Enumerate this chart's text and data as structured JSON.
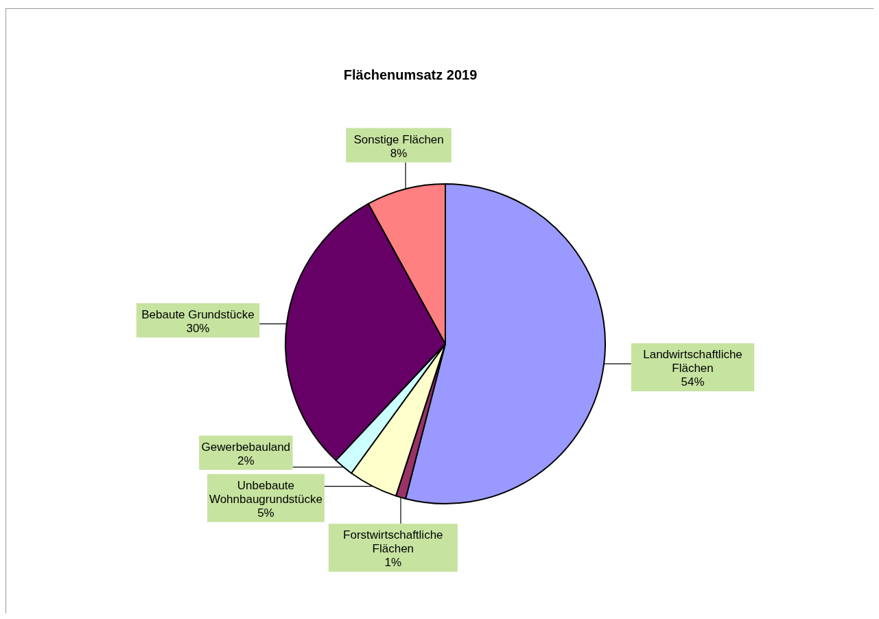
{
  "chart_data": {
    "type": "pie",
    "title": "Flächenumsatz 2019",
    "categories": [
      "Landwirtschaftliche Flächen",
      "Forstwirtschaftliche Flächen",
      "Unbebaute Wohnbaugrundstücke",
      "Gewerbebauland",
      "Bebaute Grundstücke",
      "Sonstige Flächen"
    ],
    "values": [
      54,
      1,
      5,
      2,
      30,
      8
    ],
    "value_labels": [
      "54%",
      "1%",
      "5%",
      "2%",
      "30%",
      "8%"
    ],
    "colors": [
      "#9999ff",
      "#993366",
      "#ffffcc",
      "#ccffff",
      "#660066",
      "#ff8080"
    ]
  }
}
